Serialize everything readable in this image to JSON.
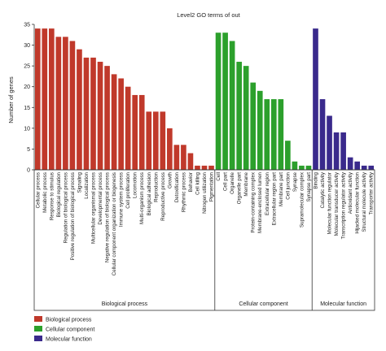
{
  "chart_data": {
    "type": "bar",
    "title": "Level2 GO terms of out",
    "ylabel": "Number of genes",
    "xlabel": "",
    "ylim": [
      0,
      35
    ],
    "yticks": [
      0,
      5,
      10,
      15,
      20,
      25,
      30,
      35
    ],
    "grid": false,
    "legend_position": "bottom-left",
    "groups": [
      {
        "name": "Biological process",
        "color": "#c0392b",
        "categories": [
          "Cellular process",
          "Metabolic process",
          "Response to stimulus",
          "Biological regulation",
          "Regulation of biological process",
          "Positive regulation of biological process",
          "Signaling",
          "Localization",
          "Multicellular organismal process",
          "Developmental process",
          "Negative regulation of biological process",
          "Cellular component organization or biogenesis",
          "Immune system process",
          "Cell proliferation",
          "Locomotion",
          "Multi-organism process",
          "Biological adhesion",
          "Reproduction",
          "Reproductive process",
          "Growth",
          "Detoxification",
          "Rhythmic process",
          "Behavior",
          "Cell killing",
          "Nitrogen utilization",
          "Pigmentation"
        ],
        "values": [
          34,
          34,
          34,
          32,
          32,
          31,
          29,
          27,
          27,
          26,
          25,
          23,
          22,
          20,
          18,
          18,
          14,
          14,
          14,
          10,
          6,
          6,
          4,
          1,
          1,
          1
        ]
      },
      {
        "name": "Cellular component",
        "color": "#2ca02c",
        "categories": [
          "Cell",
          "Cell part",
          "Organelle",
          "Organelle part",
          "Membrane",
          "Protein-containing complex",
          "Membrane-enclosed lumen",
          "Extracellular region",
          "Extracellular region part",
          "Membrane part",
          "Cell junction",
          "Synapse",
          "Supramolecular complex",
          "Synapse part"
        ],
        "values": [
          33,
          33,
          31,
          26,
          25,
          21,
          19,
          17,
          17,
          17,
          7,
          2,
          1,
          1
        ]
      },
      {
        "name": "Molecular function",
        "color": "#3a2a8c",
        "categories": [
          "Binding",
          "Catalytic activity",
          "Molecular function regulator",
          "Molecular transducer activity",
          "Transcription regulator activity",
          "Antioxidant activity",
          "Hijacked molecular function",
          "Structural molecule activity",
          "Transporter activity"
        ],
        "values": [
          34,
          17,
          13,
          9,
          9,
          3,
          2,
          1,
          1
        ]
      }
    ]
  }
}
